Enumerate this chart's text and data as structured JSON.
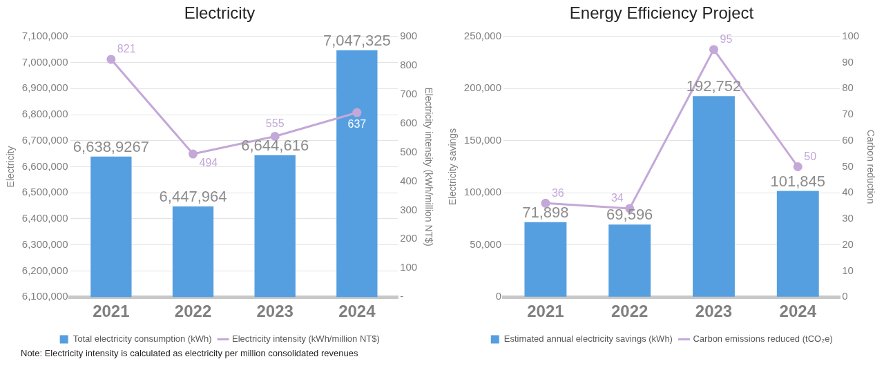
{
  "chart_data": [
    {
      "type": "bar",
      "title": "Electricity",
      "ylabel": "Electricity",
      "y2label": "Electricity intensity (kWh/million NT$)",
      "categories": [
        "2021",
        "2022",
        "2023",
        "2024"
      ],
      "series": [
        {
          "name": "Total electricity consumption (kWh)",
          "color": "#559fe0",
          "values": [
            6638927,
            6447964,
            6644616,
            7047325
          ],
          "value_labels": [
            "6,638,9267",
            "6,447,964",
            "6,644,616",
            "7,047,325"
          ]
        },
        {
          "name": "Electricity intensity (kWh/million NT$)",
          "type": "line",
          "axis": "y2",
          "color": "#c4a8d8",
          "values": [
            821,
            494,
            555,
            637
          ]
        }
      ],
      "ylim": [
        6100000,
        7100000
      ],
      "yticks": [
        {
          "value": 6100000,
          "label": "6,100,000"
        },
        {
          "value": 6200000,
          "label": "6,200,000"
        },
        {
          "value": 6300000,
          "label": "6,300,000"
        },
        {
          "value": 6400000,
          "label": "6,400,000"
        },
        {
          "value": 6500000,
          "label": "6,500,000"
        },
        {
          "value": 6600000,
          "label": "6,600,000"
        },
        {
          "value": 6700000,
          "label": "6,700,000"
        },
        {
          "value": 6800000,
          "label": "6,800,000"
        },
        {
          "value": 6900000,
          "label": "6,900,000"
        },
        {
          "value": 7000000,
          "label": "7,000,000"
        },
        {
          "value": 7100000,
          "label": "7,100,000"
        }
      ],
      "y2lim": [
        0,
        900
      ],
      "y2ticks": [
        {
          "value": 0,
          "label": "-"
        },
        100,
        200,
        300,
        400,
        500,
        600,
        700,
        800,
        900
      ],
      "grid": "y",
      "legend": "bottom",
      "marker": "circle",
      "data_labels": true,
      "annotations": [
        "Note: Electricity intensity is calculated as electricity per million consolidated revenues"
      ]
    },
    {
      "type": "bar",
      "title": "Energy Efficiency Project",
      "ylabel": "Electricity savings",
      "y2label": "Carbon reduction",
      "categories": [
        "2021",
        "2022",
        "2023",
        "2024"
      ],
      "series": [
        {
          "name": "Estimated annual electricity savings (kWh)",
          "color": "#559fe0",
          "values": [
            71898,
            69596,
            192752,
            101845
          ],
          "value_labels": [
            "71,898",
            "69,596",
            "192,752",
            "101,845"
          ]
        },
        {
          "name": "Carbon emissions reduced (tCO₂e)",
          "type": "line",
          "axis": "y2",
          "color": "#c4a8d8",
          "values": [
            36,
            34,
            95,
            50
          ]
        }
      ],
      "ylim": [
        0,
        250000
      ],
      "yticks": [
        0,
        {
          "value": 50000,
          "label": "50,000"
        },
        {
          "value": 100000,
          "label": "100,000"
        },
        {
          "value": 150000,
          "label": "150,000"
        },
        {
          "value": 200000,
          "label": "200,000"
        },
        {
          "value": 250000,
          "label": "250,000"
        }
      ],
      "y2lim": [
        0,
        100
      ],
      "y2ticks": [
        0,
        10,
        20,
        30,
        40,
        50,
        60,
        70,
        80,
        90,
        100
      ],
      "grid": "y",
      "legend": "bottom",
      "marker": "circle",
      "data_labels": true
    }
  ]
}
